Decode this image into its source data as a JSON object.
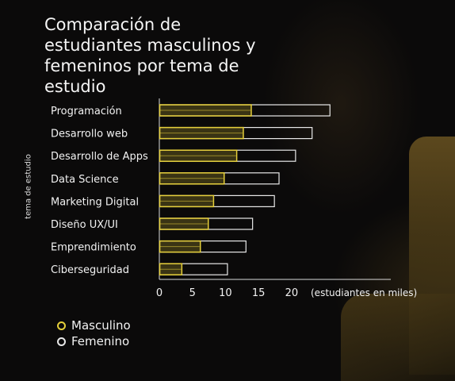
{
  "title": "Comparación de estudiantes masculinos y femeninos por tema de estudio",
  "colors": {
    "masculino": "#e5cf3a",
    "femenino": "#e8e8e8",
    "axis": "#d9d9d9"
  },
  "chart_data": {
    "type": "bar",
    "orientation": "horizontal",
    "title": "Comparación de estudiantes masculinos y femeninos por tema de estudio",
    "ylabel": "tema de estudio",
    "xlabel_unit": "(estudiantes en miles)",
    "xlim": [
      0,
      35
    ],
    "xticks": [
      0,
      5,
      10,
      15,
      20
    ],
    "grid": false,
    "legend": "bottom-left",
    "categories": [
      "Programación",
      "Desarrollo web",
      "Desarrollo de Apps",
      "Data Science",
      "Marketing Digital",
      "Diseño UX/UI",
      "Emprendimiento",
      "Ciberseguridad"
    ],
    "series": [
      {
        "name": "Masculino",
        "values": [
          13.9,
          12.7,
          11.7,
          9.8,
          8.2,
          7.4,
          6.2,
          3.4
        ]
      },
      {
        "name": "Femenino",
        "values": [
          25.8,
          23.1,
          20.6,
          18.1,
          17.4,
          14.1,
          13.1,
          10.3
        ]
      }
    ]
  }
}
